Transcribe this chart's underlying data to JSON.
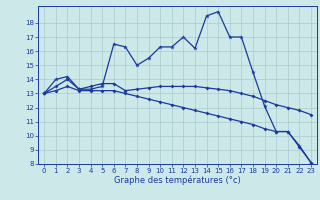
{
  "xlabel": "Graphe des températures (°c)",
  "bg_color": "#cce8e8",
  "line_color": "#1a3a9e",
  "grid_color": "#aacccc",
  "ylim": [
    8,
    19.2
  ],
  "xlim": [
    -0.5,
    23.5
  ],
  "yticks": [
    8,
    9,
    10,
    11,
    12,
    13,
    14,
    15,
    16,
    17,
    18
  ],
  "xticks": [
    0,
    1,
    2,
    3,
    4,
    5,
    6,
    7,
    8,
    9,
    10,
    11,
    12,
    13,
    14,
    15,
    16,
    17,
    18,
    19,
    20,
    21,
    22,
    23
  ],
  "curve1_x": [
    0,
    1,
    2,
    3,
    4,
    5,
    6,
    7,
    8,
    9,
    10,
    11,
    12,
    13,
    14,
    15,
    16,
    17,
    18,
    19,
    20,
    21,
    22,
    23
  ],
  "curve1_y": [
    13.0,
    14.0,
    14.2,
    13.3,
    13.3,
    13.5,
    16.5,
    16.3,
    15.0,
    15.5,
    16.3,
    16.3,
    17.0,
    16.2,
    18.5,
    18.8,
    17.0,
    17.0,
    14.5,
    12.1,
    10.3,
    10.3,
    9.3,
    8.1
  ],
  "curve2_x": [
    0,
    1,
    2,
    3,
    4,
    5,
    6,
    7,
    8,
    9,
    10,
    11,
    12,
    13,
    14,
    15,
    16,
    17,
    18,
    19,
    20,
    21,
    22,
    23
  ],
  "curve2_y": [
    13.0,
    13.5,
    14.0,
    13.3,
    13.5,
    13.7,
    13.7,
    13.2,
    13.3,
    13.4,
    13.5,
    13.5,
    13.5,
    13.5,
    13.4,
    13.3,
    13.2,
    13.0,
    12.8,
    12.5,
    12.2,
    12.0,
    11.8,
    11.5
  ],
  "curve3_x": [
    0,
    1,
    2,
    3,
    4,
    5,
    6,
    7,
    8,
    9,
    10,
    11,
    12,
    13,
    14,
    15,
    16,
    17,
    18,
    19,
    20,
    21,
    22,
    23
  ],
  "curve3_y": [
    13.0,
    13.2,
    13.5,
    13.2,
    13.2,
    13.2,
    13.2,
    13.0,
    12.8,
    12.6,
    12.4,
    12.2,
    12.0,
    11.8,
    11.6,
    11.4,
    11.2,
    11.0,
    10.8,
    10.5,
    10.3,
    10.3,
    9.2,
    8.1
  ],
  "figsize": [
    3.2,
    2.0
  ],
  "dpi": 100
}
